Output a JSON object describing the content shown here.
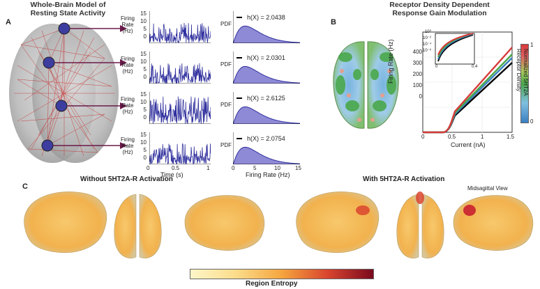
{
  "panel_a": {
    "letter": "A",
    "title_line1": "Whole-Brain Model of",
    "title_line2": "Resting State Activity",
    "trace_ylabel_1": "Firing",
    "trace_ylabel_2": "Rate (Hz)",
    "trace_yticks": [
      "15",
      "10",
      "5",
      "0"
    ],
    "trace_xticks": [
      "0",
      "0.5",
      "1"
    ],
    "trace_xlabel": "Time (s)",
    "pdf_ylabel": "PDF",
    "pdf_xticks": [
      "0",
      "5",
      "10",
      "15"
    ],
    "pdf_xlabel": "Firing Rate (Hz)",
    "entropies": [
      {
        "label": "h(X) = 2.0438",
        "value": 2.0438
      },
      {
        "label": "h(X) = 2.0301",
        "value": 2.0301
      },
      {
        "label": "h(X) = 2.6125",
        "value": 2.6125
      },
      {
        "label": "h(X) = 2.0754",
        "value": 2.0754
      }
    ]
  },
  "panel_b": {
    "letter": "B",
    "title_line1": "Receptor Density Dependent",
    "title_line2": "Response Gain Modulation",
    "ylabel": "Firing Rate (Hz)",
    "xlabel": "Current (nA)",
    "yticks": [
      "400",
      "300",
      "200",
      "100",
      "0"
    ],
    "xticks": [
      "0",
      "0.5",
      "1",
      "1.5"
    ],
    "inset_yticks": [
      "10⁰",
      "10⁻²",
      "10⁻⁴",
      "10⁻⁶"
    ],
    "inset_xticks": [
      "0",
      "0.4"
    ],
    "colorbar_label_1": "Normalized 5HT2A",
    "colorbar_label_2": "Receptor Density",
    "colorbar_ticks": [
      "1",
      "0"
    ],
    "colors": {
      "low": "#3a7fc1",
      "mid": "#4aa84a",
      "high": "#d63a3a",
      "baseline": "#000000"
    }
  },
  "panel_c": {
    "letter": "C",
    "without_title": "Without 5HT2A-R Activation",
    "with_title": "With 5HT2A-R Activation",
    "midsagittal_label": "Midsagittal View",
    "colorbar_label": "Region Entropy",
    "colors": {
      "low": "#fdf6c8",
      "high": "#7a0a1e"
    }
  }
}
